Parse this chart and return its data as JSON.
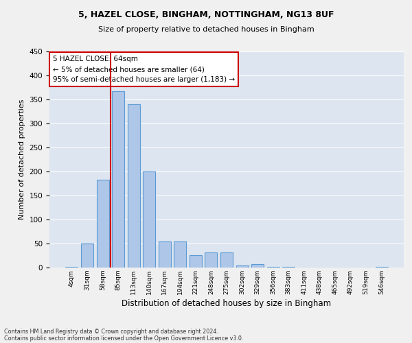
{
  "title_line1": "5, HAZEL CLOSE, BINGHAM, NOTTINGHAM, NG13 8UF",
  "title_line2": "Size of property relative to detached houses in Bingham",
  "xlabel": "Distribution of detached houses by size in Bingham",
  "ylabel": "Number of detached properties",
  "categories": [
    "4sqm",
    "31sqm",
    "58sqm",
    "85sqm",
    "113sqm",
    "140sqm",
    "167sqm",
    "194sqm",
    "221sqm",
    "248sqm",
    "275sqm",
    "302sqm",
    "329sqm",
    "356sqm",
    "383sqm",
    "411sqm",
    "438sqm",
    "465sqm",
    "492sqm",
    "519sqm",
    "546sqm"
  ],
  "values": [
    2,
    50,
    183,
    367,
    340,
    200,
    54,
    54,
    26,
    31,
    32,
    5,
    7,
    2,
    1,
    0,
    0,
    0,
    0,
    0,
    2
  ],
  "bar_color": "#aec6e8",
  "bar_edgecolor": "#5b9bd5",
  "bar_linewidth": 0.8,
  "vline_color": "#cc0000",
  "annotation_text_line1": "5 HAZEL CLOSE: 64sqm",
  "annotation_text_line2": "← 5% of detached houses are smaller (64)",
  "annotation_text_line3": "95% of semi-detached houses are larger (1,183) →",
  "annotation_box_color": "#cc0000",
  "background_color": "#dde5f0",
  "grid_color": "#ffffff",
  "fig_facecolor": "#f0f0f0",
  "ylim": [
    0,
    450
  ],
  "yticks": [
    0,
    50,
    100,
    150,
    200,
    250,
    300,
    350,
    400,
    450
  ],
  "footnote_line1": "Contains HM Land Registry data © Crown copyright and database right 2024.",
  "footnote_line2": "Contains public sector information licensed under the Open Government Licence v3.0."
}
